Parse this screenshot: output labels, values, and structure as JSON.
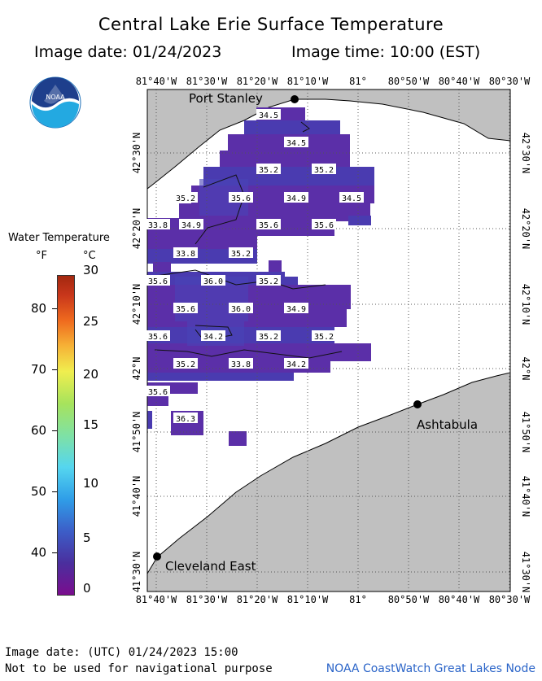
{
  "header": {
    "title": "Central Lake Erie Surface Temperature",
    "image_date": "Image date: 01/24/2023",
    "image_time": "Image time: 10:00 (EST)"
  },
  "logo": {
    "text": "NOAA",
    "icon": "noaa-logo-icon"
  },
  "legend": {
    "title": "Water Temperature",
    "unit_f": "°F",
    "unit_c": "°C",
    "f_ticks": [
      "80",
      "70",
      "60",
      "50",
      "40"
    ],
    "c_ticks": [
      "30",
      "25",
      "20",
      "15",
      "10",
      "5",
      "0"
    ]
  },
  "axes": {
    "lon_labels": [
      "81°40'W",
      "81°30'W",
      "81°20'W",
      "81°10'W",
      "81°",
      "80°50'W",
      "80°40'W",
      "80°30'W"
    ],
    "lat_labels": [
      "42°30'N",
      "42°20'N",
      "42°10'N",
      "42°N",
      "41°50'N",
      "41°40'N",
      "41°30'N"
    ]
  },
  "places": {
    "port_stanley": "Port Stanley",
    "ashtabula": "Ashtabula",
    "cleveland": "Cleveland East"
  },
  "temperature_labels": [
    {
      "text": "34.5"
    },
    {
      "text": "34.5"
    },
    {
      "text": "35.2"
    },
    {
      "text": "35.2"
    },
    {
      "text": "35.2"
    },
    {
      "text": "35.6"
    },
    {
      "text": "34.9"
    },
    {
      "text": "34.5"
    },
    {
      "text": "33.8"
    },
    {
      "text": "34.9"
    },
    {
      "text": "35.6"
    },
    {
      "text": "35.6"
    },
    {
      "text": "33.8"
    },
    {
      "text": "35.2"
    },
    {
      "text": "35.6"
    },
    {
      "text": "36.0"
    },
    {
      "text": "35.2"
    },
    {
      "text": "35.6"
    },
    {
      "text": "36.0"
    },
    {
      "text": "34.9"
    },
    {
      "text": "35.6"
    },
    {
      "text": "34.2"
    },
    {
      "text": "35.2"
    },
    {
      "text": "35.2"
    },
    {
      "text": "35.2"
    },
    {
      "text": "33.8"
    },
    {
      "text": "34.2"
    },
    {
      "text": "35.6"
    },
    {
      "text": "36.3"
    }
  ],
  "colors": {
    "land": "#c0c0c0",
    "water_cold": "#5b2fa8",
    "water_cold2": "#4a3bb0",
    "grid": "#444444"
  },
  "footer": {
    "utc_date": "Image date: (UTC) 01/24/2023  15:00",
    "disclaimer": "Not to be used for navigational purpose",
    "credit": "NOAA CoastWatch Great Lakes Node"
  }
}
